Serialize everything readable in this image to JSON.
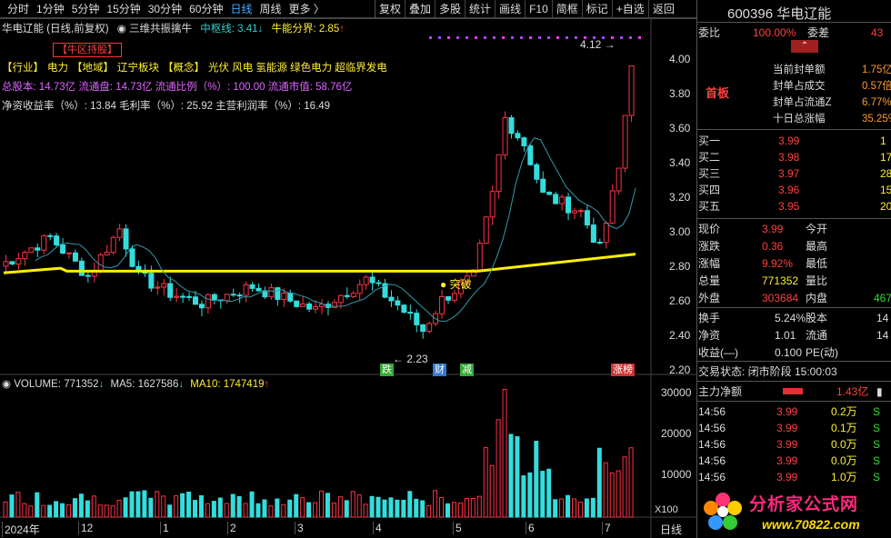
{
  "toolbar": {
    "left": [
      "分时",
      "1分钟",
      "5分钟",
      "15分钟",
      "30分钟",
      "60分钟",
      "日线",
      "周线",
      "更多 〉"
    ],
    "right": [
      "复权",
      "叠加",
      "多股",
      "统计",
      "画线",
      "F10",
      "简框",
      "标记",
      "+自选",
      "返回"
    ]
  },
  "stock": {
    "code": "600396",
    "name": "华电辽能"
  },
  "chart_header": {
    "title": "华电辽能 (日线,前复权)",
    "indicator": "三维共振擒牛",
    "zhongshu": "中枢线: 3.41",
    "bull_line": "牛能分界: 2.85"
  },
  "tag_box": "【牛区持股】",
  "info": {
    "line1": [
      {
        "t": "【行业】",
        "c": "y"
      },
      {
        "t": "电力",
        "c": "y"
      },
      {
        "t": "【地域】",
        "c": "y"
      },
      {
        "t": "辽宁板块",
        "c": "y"
      },
      {
        "t": "【概念】",
        "c": "y"
      },
      {
        "t": "光伏 风电 氢能源 绿色电力 超临界发电",
        "c": "y"
      }
    ],
    "line2": "总股本: 14.73亿 流通盘: 14.73亿 流通比例（%）: 100.00 流通市值: 58.76亿",
    "line3": "净资收益率（%）: 13.84 毛利率（%）: 25.92 主营利润率（%）: 16.49"
  },
  "price_axis": [
    "4.00",
    "3.80",
    "3.60",
    "3.40",
    "3.20",
    "3.00",
    "2.80",
    "2.60",
    "2.40",
    "2.20"
  ],
  "vol_axis": [
    "30000",
    "20000",
    "10000"
  ],
  "vol_unit": "X100",
  "annotations": {
    "high": "4.12",
    "low": "2.23",
    "breakout": "突破",
    "tags": [
      {
        "t": "跌"
      },
      {
        "t": "财"
      },
      {
        "t": "减"
      },
      {
        "t": "涨榜"
      }
    ]
  },
  "volume_header": {
    "vol": "VOLUME: 771352",
    "ma5": "MA5: 1627586",
    "ma10": "MA10: 1747419"
  },
  "date_axis": [
    "2024年",
    "12",
    "1",
    "2",
    "3",
    "4",
    "5",
    "6",
    "7"
  ],
  "period_label": "日线",
  "right": {
    "weibi": {
      "label": "委比",
      "value": "100.00%",
      "label2": "委差",
      "value2": "43"
    },
    "limit": "首板",
    "stats": [
      {
        "l": "当前封单额",
        "v": "1.75亿"
      },
      {
        "l": "封单占成交",
        "v": "0.57倍"
      },
      {
        "l": "封单占流通Z",
        "v": "6.77%"
      },
      {
        "l": "十日总涨幅",
        "v": "35.25%"
      }
    ],
    "book": [
      {
        "l": "买一",
        "p": "3.99",
        "q": "1"
      },
      {
        "l": "买二",
        "p": "3.98",
        "q": "17"
      },
      {
        "l": "买三",
        "p": "3.97",
        "q": "28"
      },
      {
        "l": "买四",
        "p": "3.96",
        "q": "15"
      },
      {
        "l": "买五",
        "p": "3.95",
        "q": "20"
      }
    ],
    "quote": [
      {
        "l": "现价",
        "v": "3.99",
        "l2": "今开"
      },
      {
        "l": "涨跌",
        "v": "0.36",
        "l2": "最高"
      },
      {
        "l": "涨幅",
        "v": "9.92%",
        "l2": "最低"
      },
      {
        "l": "总量",
        "v": "771352",
        "l2": "量比"
      },
      {
        "l": "外盘",
        "v": "303684",
        "l2": "内盘",
        "v2": "467"
      }
    ],
    "quote2": [
      {
        "l": "换手",
        "v": "5.24%",
        "l2": "股本",
        "v2": "14"
      },
      {
        "l": "净资",
        "v": "1.01",
        "l2": "流通",
        "v2": "14"
      },
      {
        "l": "收益(—)",
        "v": "0.100",
        "l2": "PE(动)"
      }
    ],
    "status": "交易状态: 闭市阶段 15:00:03",
    "main_net": {
      "label": "主力净额",
      "value": "1.43亿"
    },
    "ticks": [
      {
        "t": "14:56",
        "p": "3.99",
        "v": "0.2万",
        "s": "S"
      },
      {
        "t": "14:56",
        "p": "3.99",
        "v": "0.1万",
        "s": "S"
      },
      {
        "t": "14:56",
        "p": "3.99",
        "v": "0.0万",
        "s": "S"
      },
      {
        "t": "14:56",
        "p": "3.99",
        "v": "0.0万",
        "s": "S"
      },
      {
        "t": "14:56",
        "p": "3.99",
        "v": "1.0万",
        "s": "S"
      }
    ]
  },
  "watermark": {
    "main": "分析家公式网",
    "url": "www.70822.com"
  },
  "colors": {
    "up": "#ff3333",
    "down": "#33dddd",
    "ma_yellow": "#ffee00",
    "ma_cyan": "#3399aa"
  },
  "chart_data": {
    "type": "candlestick",
    "price_range": [
      2.2,
      4.12
    ],
    "volume_range": [
      0,
      30000
    ],
    "dates_span": "2024年11月 – 2025年7月",
    "high": 4.12,
    "low": 2.23,
    "last_close": 3.99
  }
}
